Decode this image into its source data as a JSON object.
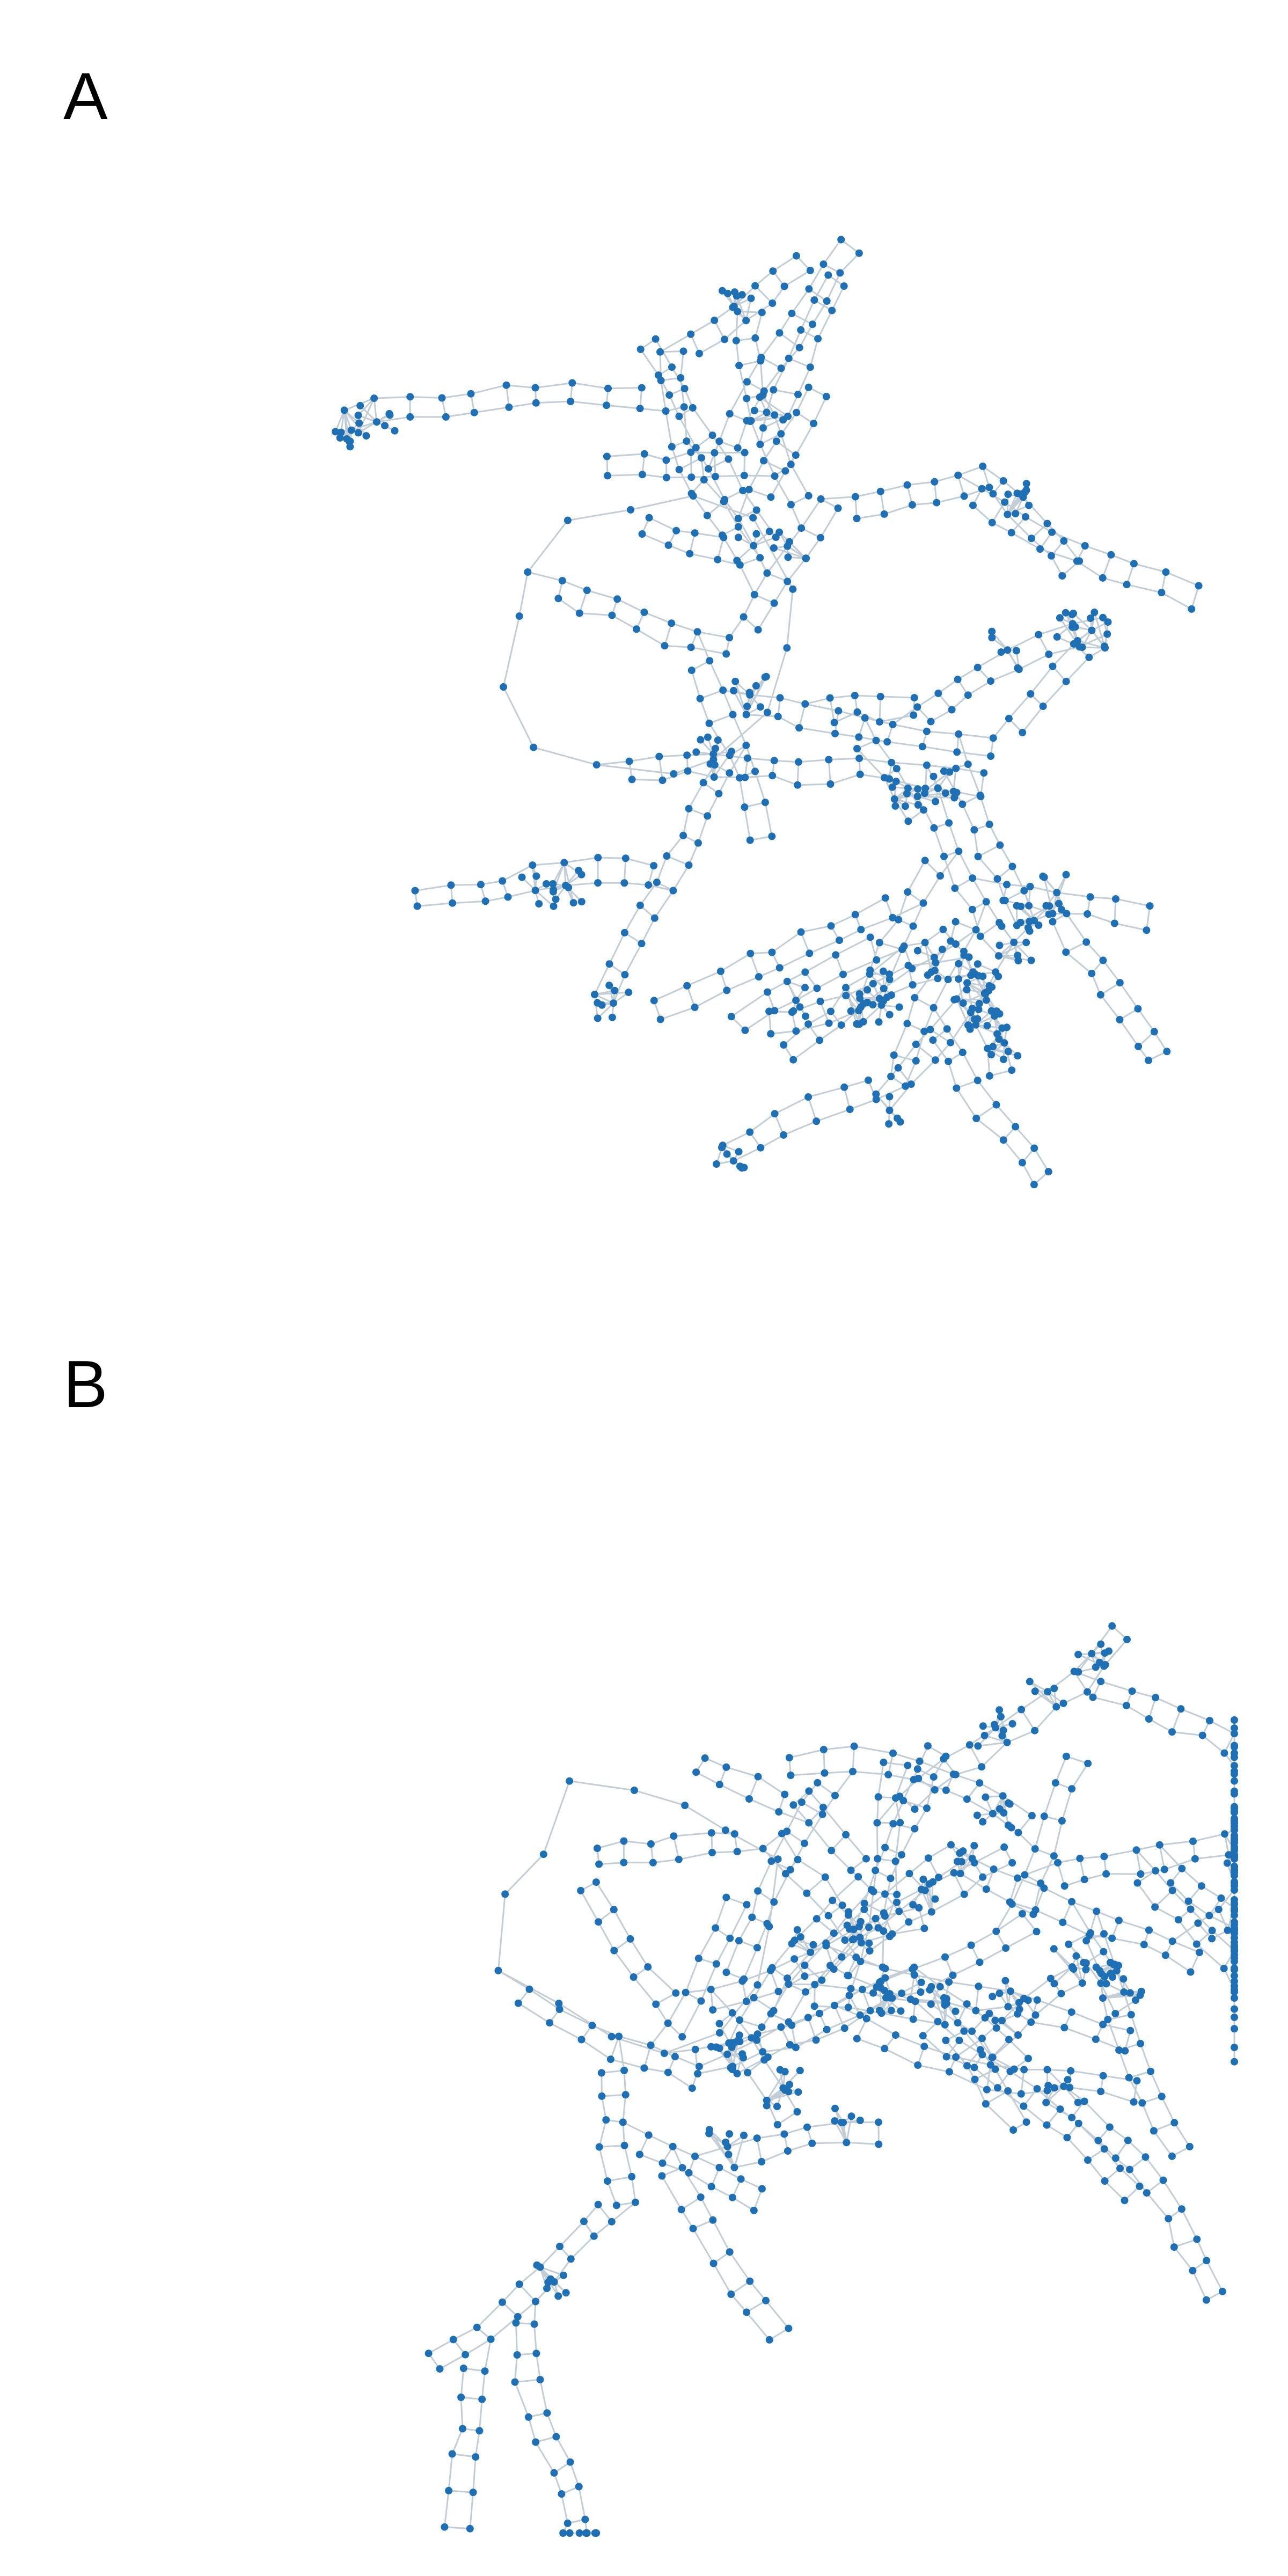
{
  "panels": [
    {
      "id": "a",
      "label": "A",
      "seed": 11,
      "node_count": 760
    },
    {
      "id": "b",
      "label": "B",
      "seed": 29,
      "node_count": 840
    }
  ],
  "colors": {
    "node": "#1f6fb4",
    "edge": "#c3cdd6",
    "background": "#ffffff"
  }
}
